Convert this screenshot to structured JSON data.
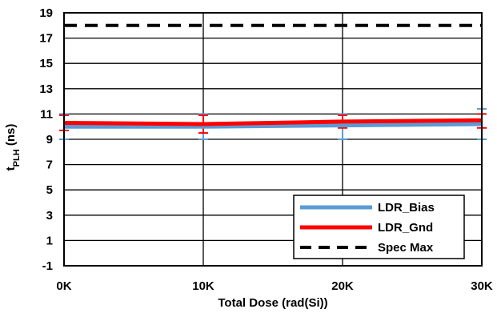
{
  "chart_data": {
    "type": "line",
    "title": "",
    "xlabel": "Total Dose (rad(Si))",
    "ylabel": {
      "main": "t",
      "sub": "PLH",
      "unit": " (ns)"
    },
    "x": [
      0,
      10,
      20,
      30
    ],
    "xtick_labels": [
      "0K",
      "10K",
      "20K",
      "30K"
    ],
    "xlim": [
      0,
      30
    ],
    "ylim": [
      -1,
      19
    ],
    "yticks": [
      -1,
      1,
      3,
      5,
      7,
      9,
      11,
      13,
      15,
      17,
      19
    ],
    "ytick_labels": [
      "-1",
      "1",
      "3",
      "5",
      "7",
      "9",
      "11",
      "13",
      "15",
      "17",
      "19"
    ],
    "grid": true,
    "legend_position": "bottom-right",
    "series": [
      {
        "name": "LDR_Bias",
        "color": "#5b9bd5",
        "style": "solid",
        "values": [
          10.0,
          10.0,
          10.1,
          10.2
        ],
        "error_low": [
          9.0,
          9.0,
          9.0,
          9.0
        ],
        "error_high": [
          11.0,
          11.0,
          11.0,
          11.4
        ]
      },
      {
        "name": "LDR_Gnd",
        "color": "#ff0000",
        "style": "solid",
        "values": [
          10.3,
          10.2,
          10.4,
          10.5
        ],
        "error_low": [
          9.7,
          9.5,
          9.9,
          9.9
        ],
        "error_high": [
          10.9,
          10.9,
          10.9,
          11.0
        ]
      },
      {
        "name": "Spec Max",
        "color": "#000000",
        "style": "dashed",
        "values": [
          18,
          18,
          18,
          18
        ]
      }
    ]
  }
}
